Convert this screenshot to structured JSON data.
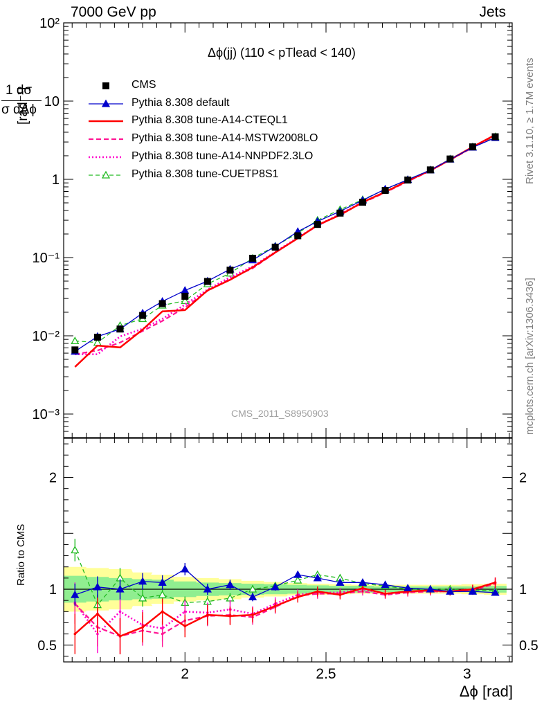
{
  "header": {
    "left": "7000 GeV pp",
    "right": "Jets"
  },
  "title": "Δϕ(jj) (110 < pTlead <  140)",
  "analysis_tag": "CMS_2011_S8950903",
  "side_labels": {
    "rivet": "Rivet 3.1.10, ≥ 1.7M events",
    "mcplots": "mcplots.cern.ch [arXiv:1306.3436]"
  },
  "y_axis_top": {
    "label_num": "1 dσ",
    "label_den": "σ dΔϕ",
    "unit": "[rad⁻¹]"
  },
  "y_axis_bottom": {
    "label": "Ratio to CMS"
  },
  "x_axis": {
    "label": "Δϕ [rad]"
  },
  "colors": {
    "cms": "#000000",
    "default": "#0000cc",
    "cteql1": "#ff0000",
    "mstw": "#ff1493",
    "nnpdf": "#ff00cc",
    "cuetp": "#22bb22",
    "band_inner": "#90ee90",
    "band_outer": "#ffff99"
  },
  "chart_data": {
    "type": "line",
    "title": "Δϕ(jj) (110 < pTlead <  140)",
    "xlabel": "Δϕ [rad]",
    "ylabel": "1/σ dσ/dΔϕ [rad⁻¹]",
    "xlim": [
      1.57,
      3.16
    ],
    "ylim_main": [
      0.0005,
      100
    ],
    "ylim_ratio": [
      0.35,
      2.35
    ],
    "yscale_main": "log",
    "x": [
      1.61,
      1.69,
      1.77,
      1.85,
      1.92,
      2.0,
      2.08,
      2.16,
      2.24,
      2.32,
      2.4,
      2.47,
      2.55,
      2.63,
      2.71,
      2.79,
      2.87,
      2.94,
      3.02,
      3.1
    ],
    "main_ticks": [
      {
        "v": 0.001,
        "label": "10⁻³"
      },
      {
        "v": 0.01,
        "label": "10⁻²"
      },
      {
        "v": 0.1,
        "label": "10⁻¹"
      },
      {
        "v": 1,
        "label": "1"
      },
      {
        "v": 10,
        "label": "10"
      },
      {
        "v": 100,
        "label": "10²"
      }
    ],
    "ratio_ticks": [
      {
        "v": 0.5,
        "label": "0.5"
      },
      {
        "v": 1,
        "label": "1"
      },
      {
        "v": 2,
        "label": "2"
      }
    ],
    "x_ticks": [
      {
        "v": 2.0,
        "label": "2"
      },
      {
        "v": 2.5,
        "label": "2.5"
      },
      {
        "v": 3.0,
        "label": "3"
      }
    ],
    "ratio_band": {
      "inner": [
        0.12,
        0.11,
        0.1,
        0.09,
        0.085,
        0.07,
        0.06,
        0.055,
        0.05,
        0.045,
        0.04,
        0.035,
        0.03,
        0.03,
        0.025,
        0.025,
        0.025,
        0.025,
        0.025,
        0.03
      ],
      "outer": [
        0.2,
        0.19,
        0.18,
        0.15,
        0.13,
        0.11,
        0.1,
        0.09,
        0.075,
        0.065,
        0.055,
        0.05,
        0.045,
        0.04,
        0.04,
        0.04,
        0.04,
        0.04,
        0.045,
        0.05
      ]
    },
    "series": [
      {
        "name": "CMS",
        "key": "cms",
        "style": "marker-square",
        "values": [
          0.0066,
          0.0096,
          0.0122,
          0.0182,
          0.0258,
          0.032,
          0.0495,
          0.069,
          0.098,
          0.136,
          0.19,
          0.265,
          0.37,
          0.51,
          0.72,
          0.98,
          1.32,
          1.82,
          2.6,
          3.5
        ],
        "ratio": [
          1,
          1,
          1,
          1,
          1,
          1,
          1,
          1,
          1,
          1,
          1,
          1,
          1,
          1,
          1,
          1,
          1,
          1,
          1,
          1
        ]
      },
      {
        "name": "Pythia 8.308 default",
        "key": "default",
        "style": "solid-triangle",
        "values": [
          0.0063,
          0.0098,
          0.0122,
          0.0195,
          0.0275,
          0.038,
          0.05,
          0.071,
          0.093,
          0.139,
          0.215,
          0.29,
          0.39,
          0.54,
          0.75,
          0.99,
          1.31,
          1.8,
          2.56,
          3.4
        ],
        "ratio": [
          0.95,
          1.02,
          1.0,
          1.07,
          1.06,
          1.18,
          1.0,
          1.04,
          0.93,
          1.02,
          1.13,
          1.1,
          1.06,
          1.06,
          1.04,
          1.01,
          1.0,
          0.98,
          0.98,
          0.97
        ]
      },
      {
        "name": "Pythia 8.308 tune-A14-CTEQL1",
        "key": "cteql1",
        "style": "solid-thick",
        "values": [
          0.004,
          0.0075,
          0.0071,
          0.012,
          0.0205,
          0.0213,
          0.038,
          0.052,
          0.075,
          0.116,
          0.176,
          0.26,
          0.35,
          0.51,
          0.69,
          0.96,
          1.3,
          1.78,
          2.6,
          3.7
        ],
        "ratio": [
          0.6,
          0.78,
          0.58,
          0.66,
          0.8,
          0.67,
          0.77,
          0.76,
          0.77,
          0.85,
          0.93,
          0.98,
          0.95,
          1.01,
          0.96,
          0.98,
          0.99,
          0.98,
          1.0,
          1.06
        ]
      },
      {
        "name": "Pythia 8.308 tune-A14-MSTW2008LO",
        "key": "mstw",
        "style": "dashed",
        "values": [
          0.0058,
          0.0065,
          0.0082,
          0.0115,
          0.0155,
          0.023,
          0.0375,
          0.0535,
          0.073,
          0.115,
          0.178,
          0.255,
          0.355,
          0.5,
          0.68,
          0.94,
          1.29,
          1.77,
          2.55,
          3.65
        ],
        "ratio": [
          0.87,
          0.66,
          0.58,
          0.63,
          0.6,
          0.72,
          0.76,
          0.77,
          0.75,
          0.84,
          0.94,
          0.96,
          0.96,
          0.98,
          0.95,
          0.97,
          0.98,
          0.98,
          0.99,
          1.05
        ]
      },
      {
        "name": "Pythia 8.308 tune-A14-NNPDF2.3LO",
        "key": "nnpdf",
        "style": "dotted",
        "values": [
          0.0058,
          0.0058,
          0.0098,
          0.0123,
          0.0165,
          0.025,
          0.039,
          0.056,
          0.077,
          0.118,
          0.18,
          0.258,
          0.36,
          0.51,
          0.69,
          0.95,
          1.3,
          1.78,
          2.58,
          3.68
        ],
        "ratio": [
          0.88,
          0.6,
          0.8,
          0.68,
          0.65,
          0.8,
          0.79,
          0.82,
          0.78,
          0.87,
          0.95,
          0.97,
          0.97,
          1.0,
          0.96,
          0.98,
          0.98,
          0.98,
          1.0,
          1.06
        ]
      },
      {
        "name": "Pythia 8.308 tune-CUETP8S1",
        "key": "cuetp",
        "style": "dashed-triangle-open",
        "values": [
          0.0086,
          0.0082,
          0.0135,
          0.0165,
          0.0245,
          0.028,
          0.046,
          0.063,
          0.098,
          0.14,
          0.205,
          0.3,
          0.41,
          0.55,
          0.74,
          0.99,
          1.32,
          1.82,
          2.6,
          3.5
        ],
        "ratio": [
          1.35,
          0.86,
          1.1,
          0.92,
          0.95,
          0.88,
          0.89,
          0.92,
          1.0,
          1.03,
          1.08,
          1.13,
          1.1,
          1.05,
          1.03,
          1.0,
          1.0,
          1.0,
          0.99,
          0.99
        ]
      }
    ]
  }
}
